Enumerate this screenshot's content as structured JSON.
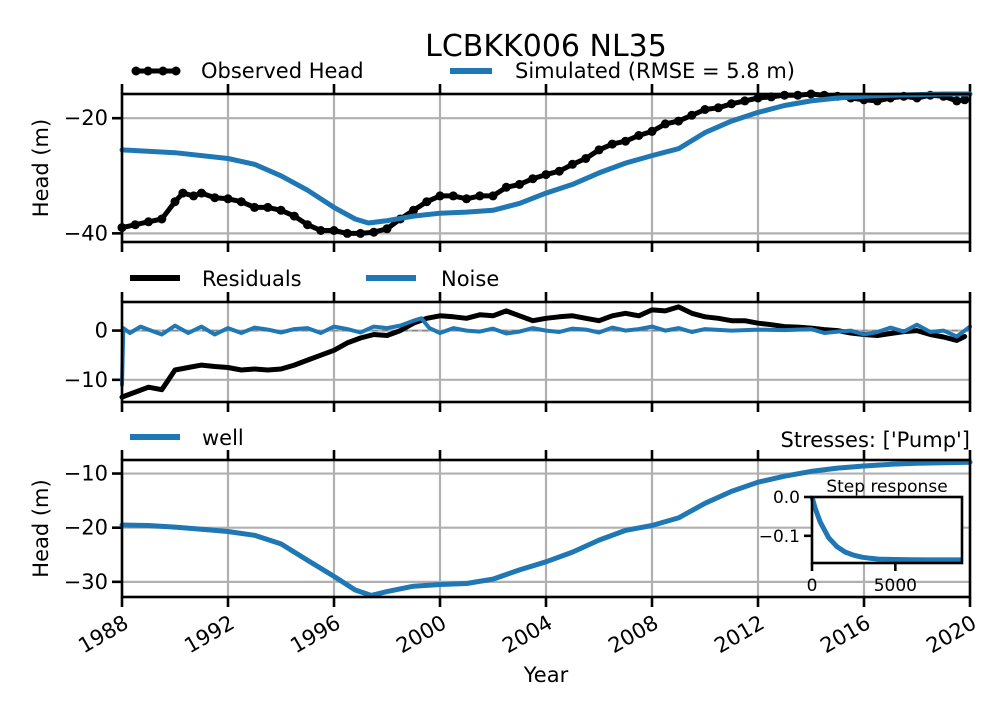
{
  "colors": {
    "observed": "#000000",
    "simulated": "#1f77b4",
    "grid": "#b0b0b0"
  },
  "chart_data": [
    {
      "type": "line",
      "title": "LCBKK006 NL35",
      "ylabel": "Head (m)",
      "xlim": [
        1988,
        2020
      ],
      "ylim": [
        -41.5,
        -15.8
      ],
      "yticks": [
        -20,
        -40
      ],
      "grid": true,
      "legend": "top-left",
      "series": [
        {
          "name": "Observed Head",
          "marker": "dot",
          "x": [
            1988.0,
            1988.5,
            1989.0,
            1989.5,
            1990.0,
            1990.3,
            1990.7,
            1991.0,
            1991.5,
            1992.0,
            1992.5,
            1993.0,
            1993.5,
            1994.0,
            1994.5,
            1995.0,
            1995.5,
            1996.0,
            1996.5,
            1997.0,
            1997.5,
            1998.0,
            1998.5,
            1999.0,
            1999.5,
            2000.0,
            2000.5,
            2001.0,
            2001.5,
            2002.0,
            2002.5,
            2003.0,
            2003.5,
            2004.0,
            2004.5,
            2005.0,
            2005.5,
            2006.0,
            2006.5,
            2007.0,
            2007.5,
            2008.0,
            2008.5,
            2009.0,
            2009.5,
            2010.0,
            2010.5,
            2011.0,
            2011.5,
            2012.0,
            2012.5,
            2013.0,
            2013.5,
            2014.0,
            2014.5,
            2015.0,
            2015.5,
            2016.0,
            2016.5,
            2017.0,
            2017.5,
            2018.0,
            2018.5,
            2019.0,
            2019.5,
            2019.8
          ],
          "y": [
            -39.0,
            -38.5,
            -38.0,
            -37.5,
            -34.5,
            -33.0,
            -33.5,
            -33.0,
            -33.8,
            -34.0,
            -34.5,
            -35.5,
            -35.5,
            -36.0,
            -37.0,
            -38.5,
            -39.5,
            -39.5,
            -40.0,
            -40.0,
            -39.8,
            -39.2,
            -37.5,
            -36.0,
            -34.5,
            -33.5,
            -33.5,
            -34.0,
            -33.5,
            -33.5,
            -32.0,
            -31.5,
            -30.5,
            -29.8,
            -29.2,
            -28.0,
            -27.0,
            -25.5,
            -24.5,
            -24.0,
            -23.0,
            -22.3,
            -21.0,
            -20.5,
            -19.5,
            -18.5,
            -18.2,
            -17.5,
            -17.0,
            -16.5,
            -16.3,
            -16.0,
            -16.0,
            -15.8,
            -16.0,
            -16.2,
            -16.5,
            -16.8,
            -17.0,
            -16.5,
            -16.2,
            -16.5,
            -16.0,
            -16.2,
            -17.0,
            -16.8
          ]
        },
        {
          "name": "Simulated (RMSE = 5.8 m)",
          "x": [
            1988,
            1990,
            1992,
            1993,
            1994,
            1995,
            1996,
            1996.8,
            1997.3,
            1998,
            1999,
            2000,
            2001,
            2002,
            2003,
            2004,
            2005,
            2006,
            2007,
            2008,
            2009,
            2010,
            2011,
            2012,
            2013,
            2014,
            2015,
            2016,
            2017,
            2018,
            2019,
            2020
          ],
          "y": [
            -25.5,
            -26.0,
            -27.0,
            -28.0,
            -30.0,
            -32.5,
            -35.5,
            -37.5,
            -38.2,
            -37.8,
            -37.0,
            -36.5,
            -36.3,
            -36.0,
            -34.8,
            -33.0,
            -31.5,
            -29.5,
            -27.8,
            -26.5,
            -25.3,
            -22.5,
            -20.5,
            -19.0,
            -17.8,
            -17.0,
            -16.5,
            -16.2,
            -16.0,
            -15.9,
            -15.8,
            -15.8
          ]
        }
      ]
    },
    {
      "type": "line",
      "xlim": [
        1988,
        2020
      ],
      "ylim": [
        -14.5,
        5.8
      ],
      "yticks": [
        0,
        -10
      ],
      "grid": true,
      "legend": "top-left",
      "series": [
        {
          "name": "Residuals",
          "x": [
            1988.0,
            1988.5,
            1989.0,
            1989.5,
            1990.0,
            1990.5,
            1991.0,
            1991.5,
            1992.0,
            1992.5,
            1993.0,
            1993.5,
            1994.0,
            1994.5,
            1995.0,
            1995.5,
            1996.0,
            1996.5,
            1997.0,
            1997.5,
            1998.0,
            1998.5,
            1999.0,
            1999.5,
            2000.0,
            2000.5,
            2001.0,
            2001.5,
            2002.0,
            2002.5,
            2003.0,
            2003.5,
            2004.0,
            2004.5,
            2005.0,
            2005.5,
            2006.0,
            2006.5,
            2007.0,
            2007.5,
            2008.0,
            2008.5,
            2009.0,
            2009.5,
            2010.0,
            2010.5,
            2011.0,
            2011.5,
            2012.0,
            2012.5,
            2013.0,
            2013.5,
            2014.0,
            2014.5,
            2015.0,
            2015.5,
            2016.0,
            2016.5,
            2017.0,
            2017.5,
            2018.0,
            2018.5,
            2019.0,
            2019.5,
            2019.8
          ],
          "y": [
            -13.5,
            -12.5,
            -11.5,
            -12.0,
            -8.0,
            -7.5,
            -7.0,
            -7.3,
            -7.5,
            -8.0,
            -7.8,
            -8.0,
            -7.8,
            -7.0,
            -6.0,
            -5.0,
            -4.0,
            -2.5,
            -1.5,
            -0.8,
            -1.0,
            0.0,
            1.5,
            2.5,
            3.0,
            2.8,
            2.5,
            3.2,
            3.0,
            4.0,
            3.0,
            2.0,
            2.5,
            2.8,
            3.0,
            2.5,
            2.0,
            3.0,
            3.5,
            3.0,
            4.2,
            4.0,
            4.8,
            3.5,
            2.8,
            2.5,
            2.0,
            2.0,
            1.5,
            1.2,
            0.8,
            0.7,
            0.5,
            0.2,
            0.0,
            -0.5,
            -0.8,
            -1.0,
            -0.6,
            -0.2,
            0.0,
            -0.8,
            -1.3,
            -2.0,
            -1.2
          ]
        },
        {
          "name": "Noise",
          "x": [
            1988.0,
            1988.05,
            1988.3,
            1988.7,
            1989.0,
            1989.5,
            1990.0,
            1990.5,
            1991.0,
            1991.5,
            1992.0,
            1992.5,
            1993.0,
            1993.5,
            1994.0,
            1994.5,
            1995.0,
            1995.5,
            1996.0,
            1996.5,
            1997.0,
            1997.5,
            1998.0,
            1998.5,
            1999.0,
            1999.3,
            1999.6,
            2000.0,
            2000.5,
            2001.0,
            2001.5,
            2002.0,
            2002.5,
            2003.0,
            2003.5,
            2004.0,
            2004.5,
            2005.0,
            2005.5,
            2006.0,
            2006.5,
            2007.0,
            2007.5,
            2008.0,
            2008.5,
            2009.0,
            2009.5,
            2010.0,
            2011.0,
            2012.0,
            2013.0,
            2014.0,
            2014.5,
            2015.0,
            2015.5,
            2016.0,
            2016.5,
            2017.0,
            2017.5,
            2018.0,
            2018.5,
            2019.0,
            2019.5,
            2020.0
          ],
          "y": [
            -11.0,
            0.5,
            -0.5,
            0.8,
            0.2,
            -0.8,
            1.0,
            -0.5,
            0.8,
            -0.8,
            0.5,
            -0.5,
            0.6,
            0.2,
            -0.4,
            0.3,
            0.5,
            -0.5,
            0.8,
            0.3,
            -0.4,
            0.8,
            0.5,
            1.0,
            2.0,
            2.5,
            0.5,
            -0.5,
            0.5,
            0.0,
            -0.2,
            0.4,
            -0.6,
            -0.2,
            0.5,
            0.0,
            -0.3,
            0.4,
            0.2,
            -0.4,
            0.6,
            0.0,
            0.3,
            0.8,
            0.0,
            0.5,
            -0.3,
            0.3,
            0.0,
            0.2,
            0.1,
            0.3,
            -0.5,
            -0.2,
            0.0,
            -0.8,
            -0.3,
            0.6,
            -0.2,
            1.2,
            -0.3,
            0.0,
            -1.2,
            0.8
          ]
        }
      ]
    },
    {
      "type": "line",
      "ylabel": "Head (m)",
      "xlabel": "Year",
      "xlim": [
        1988,
        2020
      ],
      "ylim": [
        -32.8,
        -7.5
      ],
      "yticks": [
        -10,
        -20,
        -30
      ],
      "xticks": [
        "1988",
        "1992",
        "1996",
        "2000",
        "2004",
        "2008",
        "2012",
        "2016",
        "2020"
      ],
      "grid": true,
      "legend": "top-left",
      "annotation": "Stresses: ['Pump']",
      "series": [
        {
          "name": "well",
          "x": [
            1988,
            1989,
            1990,
            1991,
            1992,
            1993,
            1994,
            1995,
            1996,
            1996.8,
            1997.4,
            1998,
            1999,
            2000,
            2001,
            2002,
            2003,
            2004,
            2005,
            2006,
            2007,
            2008,
            2009,
            2010,
            2011,
            2012,
            2013,
            2014,
            2015,
            2016,
            2017,
            2018,
            2019,
            2020
          ],
          "y": [
            -19.5,
            -19.6,
            -19.9,
            -20.3,
            -20.7,
            -21.4,
            -23.0,
            -26.0,
            -29.0,
            -31.5,
            -32.5,
            -31.8,
            -30.8,
            -30.5,
            -30.3,
            -29.5,
            -27.8,
            -26.3,
            -24.5,
            -22.3,
            -20.5,
            -19.6,
            -18.2,
            -15.5,
            -13.3,
            -11.6,
            -10.5,
            -9.6,
            -9.0,
            -8.6,
            -8.3,
            -8.1,
            -8.0,
            -7.9
          ]
        }
      ]
    },
    {
      "type": "line",
      "title": "Step response",
      "xlim": [
        0,
        9000
      ],
      "ylim": [
        -0.17,
        0.0
      ],
      "yticks": [
        "0.0",
        "−0.1"
      ],
      "xticks": [
        "0",
        "5000"
      ],
      "series": [
        {
          "x": [
            0,
            200,
            500,
            1000,
            1500,
            2000,
            2500,
            3000,
            3500,
            4000,
            5000,
            6000,
            7000,
            8000,
            9000
          ],
          "y": [
            0.0,
            -0.03,
            -0.065,
            -0.105,
            -0.128,
            -0.142,
            -0.15,
            -0.155,
            -0.158,
            -0.16,
            -0.161,
            -0.1615,
            -0.162,
            -0.162,
            -0.162
          ]
        }
      ]
    }
  ]
}
